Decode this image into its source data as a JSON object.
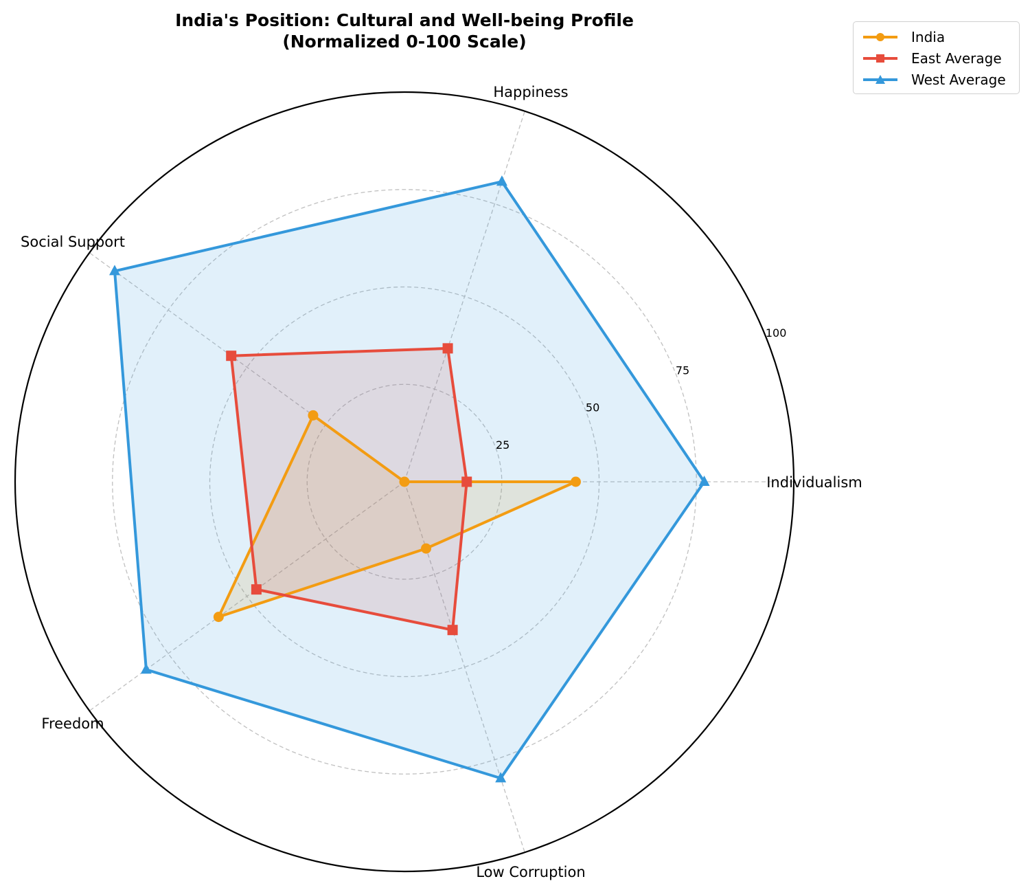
{
  "title_line1": "India's Position: Cultural and Well-being Profile",
  "title_line2": "(Normalized 0-100 Scale)",
  "legend": [
    {
      "label": "India",
      "color": "#f39c12",
      "marker": "circle"
    },
    {
      "label": "East Average",
      "color": "#e74c3c",
      "marker": "square"
    },
    {
      "label": "West Average",
      "color": "#3498db",
      "marker": "triangle"
    }
  ],
  "chart_data": {
    "type": "radar",
    "title": "India's Position: Cultural and Well-being Profile (Normalized 0-100 Scale)",
    "categories": [
      "Individualism",
      "Happiness",
      "Social Support",
      "Freedom",
      "Low Corruption"
    ],
    "rmax": 100,
    "rticks": [
      25,
      50,
      75,
      100
    ],
    "grid": true,
    "legend_position": "upper right (outside)",
    "series": [
      {
        "name": "India",
        "color": "#f39c12",
        "marker": "circle",
        "values": [
          44,
          0,
          29,
          59,
          18
        ]
      },
      {
        "name": "East Average",
        "color": "#e74c3c",
        "marker": "square",
        "values": [
          16,
          36,
          55,
          47,
          40
        ]
      },
      {
        "name": "West Average",
        "color": "#3498db",
        "marker": "triangle",
        "values": [
          77,
          81,
          92,
          82,
          80
        ]
      }
    ]
  }
}
